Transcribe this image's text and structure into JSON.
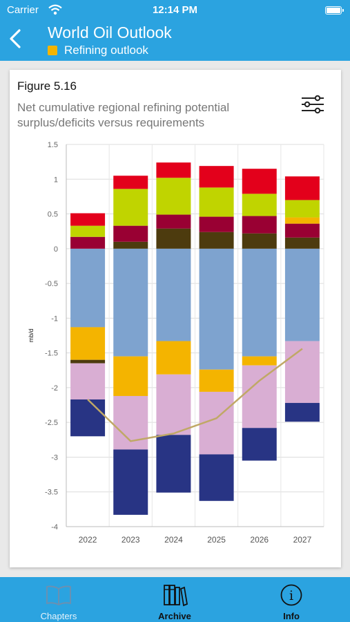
{
  "status_bar": {
    "carrier": "Carrier",
    "time": "12:14 PM"
  },
  "nav": {
    "title": "World Oil Outlook",
    "subtitle": "Refining outlook",
    "subtitle_color": "#f4b400"
  },
  "figure": {
    "label": "Figure 5.16",
    "description": "Net cumulative regional refining potential surplus/deficits versus requirements"
  },
  "chart_data": {
    "type": "bar",
    "stacked": true,
    "categories": [
      "2022",
      "2023",
      "2024",
      "2025",
      "2026",
      "2027"
    ],
    "ylabel": "mb/d",
    "ylim": [
      -4,
      1.5
    ],
    "yticks": [
      "1.5",
      "1",
      "0.5",
      "0",
      "-0.5",
      "-1",
      "-1.5",
      "-2",
      "-2.5",
      "-3",
      "-3.5",
      "-4"
    ],
    "grid": true,
    "legend": "none",
    "series": [
      {
        "color": "#7ea3cf",
        "values": [
          -1.13,
          -1.55,
          -1.33,
          -1.74,
          -1.55,
          -1.33
        ]
      },
      {
        "color": "#f4b400",
        "values": [
          -0.47,
          -0.57,
          -0.48,
          -0.32,
          -0.13,
          0
        ]
      },
      {
        "color": "#4d3b0e",
        "values": [
          -0.05,
          0,
          0,
          0,
          0,
          0
        ]
      },
      {
        "color": "#d9aed3",
        "values": [
          -0.52,
          -0.77,
          -0.87,
          -0.9,
          -0.9,
          -0.89
        ]
      },
      {
        "color": "#283484",
        "values": [
          -0.53,
          -0.94,
          -0.83,
          -0.67,
          -0.47,
          -0.27
        ]
      },
      {
        "color": "#4d3b0e",
        "values": [
          0,
          0.1,
          0.29,
          0.24,
          0.22,
          0.16
        ]
      },
      {
        "color": "#990033",
        "values": [
          0.17,
          0.23,
          0.2,
          0.22,
          0.25,
          0.2
        ]
      },
      {
        "color": "#f4b400",
        "values": [
          0,
          0,
          0,
          0,
          0,
          0.09
        ]
      },
      {
        "color": "#c0d400",
        "values": [
          0.16,
          0.53,
          0.53,
          0.42,
          0.32,
          0.25
        ]
      },
      {
        "color": "#e3001b",
        "values": [
          0.18,
          0.19,
          0.22,
          0.31,
          0.36,
          0.34
        ]
      }
    ],
    "line": {
      "color": "#c0a866",
      "values": [
        -2.17,
        -2.77,
        -2.66,
        -2.44,
        -1.9,
        -1.44
      ]
    }
  },
  "tabs": [
    {
      "label": "Chapters",
      "icon": "open-book-icon"
    },
    {
      "label": "Archive",
      "icon": "books-icon"
    },
    {
      "label": "Info",
      "icon": "info-icon"
    }
  ],
  "colors": {
    "brand": "#2ba3e0"
  }
}
